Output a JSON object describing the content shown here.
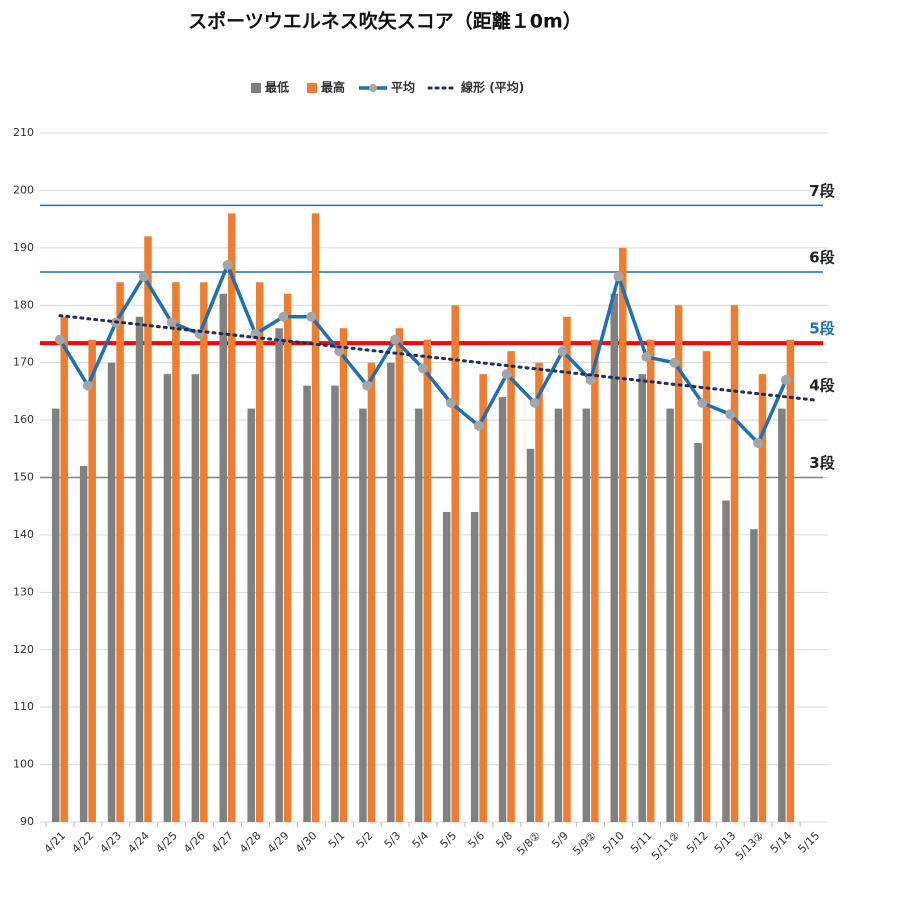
{
  "chart_data": {
    "type": "bar",
    "title": "スポーツウエルネス吹矢スコア（距離１0m）",
    "categories": [
      "4/21",
      "4/22",
      "4/23",
      "4/24",
      "4/25",
      "4/26",
      "4/27",
      "4/28",
      "4/29",
      "4/30",
      "5/1",
      "5/2",
      "5/3",
      "5/4",
      "5/5",
      "5/6",
      "5/8",
      "5/8②",
      "5/9",
      "5/9②",
      "5/10",
      "5/11",
      "5/11②",
      "5/12",
      "5/13",
      "5/13②",
      "5/14",
      "5/15"
    ],
    "series": [
      {
        "name": "最低",
        "color": "#808080",
        "values": [
          162,
          152,
          170,
          178,
          168,
          168,
          182,
          162,
          176,
          166,
          166,
          162,
          170,
          162,
          144,
          144,
          164,
          155,
          162,
          162,
          182,
          168,
          162,
          156,
          146,
          141,
          162,
          null
        ]
      },
      {
        "name": "最高",
        "color": "#ed7d31",
        "values": [
          178,
          174,
          184,
          192,
          184,
          184,
          196,
          184,
          182,
          196,
          176,
          170,
          176,
          174,
          180,
          168,
          172,
          170,
          178,
          174,
          190,
          174,
          180,
          172,
          180,
          168,
          174,
          null
        ]
      },
      {
        "name": "平均",
        "type": "line",
        "color": "#1f6fb4",
        "values": [
          174,
          166,
          177,
          185,
          177,
          175,
          187,
          175,
          178,
          178,
          172,
          166,
          174,
          169,
          163,
          159,
          168,
          163,
          172,
          167,
          185,
          171,
          170,
          163,
          161,
          156,
          167,
          null
        ]
      }
    ],
    "trend": {
      "name": "線形 (平均)",
      "color": "#1f2d5a",
      "x": [
        "4/21",
        "5/14"
      ],
      "values": [
        178.2,
        163.5
      ]
    },
    "reference_lines": [
      {
        "label": "7段",
        "value": 197.4,
        "color": "#1f6fb4",
        "label_color": "#222"
      },
      {
        "label": "6段",
        "value": 185.8,
        "color": "#1f6fb4",
        "label_color": "#222"
      },
      {
        "label": "5段",
        "value": 173.4,
        "color": "#ff0000",
        "label_color": "#1f6fb4"
      },
      {
        "label": "4段",
        "value": 163.5,
        "color": null,
        "label_color": "#222"
      },
      {
        "label": "3段",
        "value": 150,
        "color": "#808080",
        "label_color": "#222"
      }
    ],
    "ylim": [
      90,
      210
    ],
    "yticks": [
      90,
      100,
      110,
      120,
      130,
      140,
      150,
      160,
      170,
      180,
      190,
      200,
      210
    ],
    "grid": true,
    "legend": "top"
  }
}
